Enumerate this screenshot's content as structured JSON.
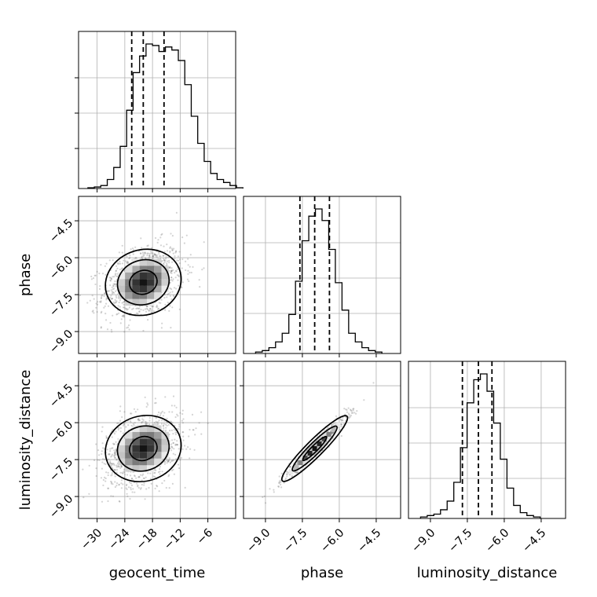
{
  "chart_data": {
    "type": "corner",
    "parameters": [
      "geocent_time",
      "phase",
      "luminosity_distance"
    ],
    "axis_labels": [
      "geocent_time",
      "phase",
      "luminosity_distance"
    ],
    "ranges": [
      [
        -33,
        -1
      ],
      [
        -9.7,
        -3.7
      ],
      [
        -9.7,
        -3.7
      ]
    ],
    "ticks": [
      [
        -30,
        -24,
        -18,
        -12,
        -6
      ],
      [
        -9.0,
        -7.5,
        -6.0,
        -4.5
      ],
      [
        -9.0,
        -7.5,
        -6.0,
        -4.5
      ]
    ],
    "tick_labels": [
      [
        "−30",
        "−24",
        "−18",
        "−12",
        "−6"
      ],
      [
        "−9.0",
        "−7.5",
        "−6.0",
        "−4.5"
      ],
      [
        "−9.0",
        "−7.5",
        "−6.0",
        "−4.5"
      ]
    ],
    "quantiles": [
      [
        -22.5,
        -20.0,
        -15.5
      ],
      [
        -7.6,
        -7.0,
        -6.4
      ],
      [
        -7.7,
        -7.05,
        -6.5
      ]
    ],
    "histograms": [
      {
        "edges_start": -32,
        "bin_width": 1.4,
        "heights": [
          0.5,
          1,
          2,
          6,
          14,
          28,
          52,
          77,
          88,
          96,
          95,
          91,
          94,
          92,
          85,
          69,
          48,
          30,
          18,
          10,
          6,
          4,
          2,
          0.5
        ]
      },
      {
        "edges_start": -9.4,
        "bin_width": 0.27,
        "heights": [
          1,
          2,
          4,
          8,
          14,
          27,
          50,
          78,
          95,
          100,
          92,
          72,
          49,
          30,
          14,
          8,
          4,
          2,
          1
        ]
      },
      {
        "edges_start": -9.4,
        "bin_width": 0.27,
        "heights": [
          1,
          2,
          3,
          6,
          12,
          25,
          49,
          80,
          96,
          100,
          88,
          66,
          41,
          21,
          9,
          4,
          2,
          1
        ]
      }
    ],
    "correlations": [
      {
        "pair": [
          "geocent_time",
          "phase"
        ],
        "rho": 0.3
      },
      {
        "pair": [
          "geocent_time",
          "luminosity_distance"
        ],
        "rho": 0.3
      },
      {
        "pair": [
          "phase",
          "luminosity_distance"
        ],
        "rho": 0.97
      }
    ],
    "grid": true
  }
}
